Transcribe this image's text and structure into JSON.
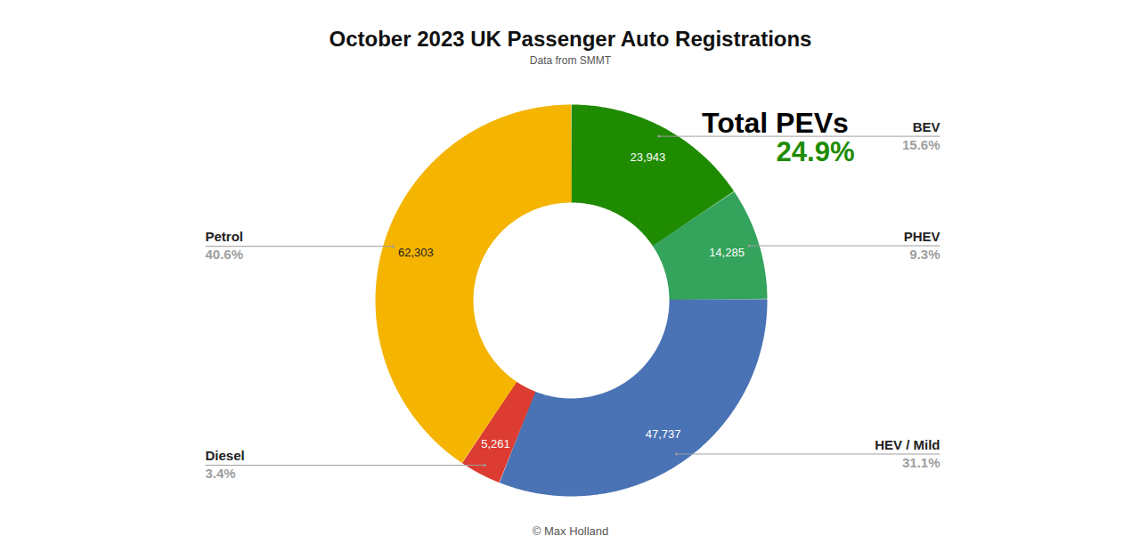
{
  "chart_data": {
    "type": "donut",
    "title": "October 2023 UK Passenger Auto Registrations",
    "subtitle": "Data from SMMT",
    "caption": "© Max Holland",
    "categories": [
      "BEV",
      "PHEV",
      "HEV / Mild",
      "Diesel",
      "Petrol"
    ],
    "values": [
      23943,
      14285,
      47737,
      5261,
      62303
    ],
    "value_labels": [
      "23,943",
      "14,285",
      "47,737",
      "5,261",
      "62,303"
    ],
    "shares": [
      15.6,
      9.3,
      31.1,
      3.4,
      40.6
    ],
    "share_labels": [
      "15.6%",
      "9.3%",
      "31.1%",
      "3.4%",
      "40.6%"
    ],
    "colors": [
      "#1f8b00",
      "#34a35c",
      "#4a73b5",
      "#dc3c31",
      "#f4b400"
    ],
    "data_labels": true,
    "annotations": [
      {
        "text": "Total PEVs"
      },
      {
        "text": "24.9%"
      }
    ]
  }
}
